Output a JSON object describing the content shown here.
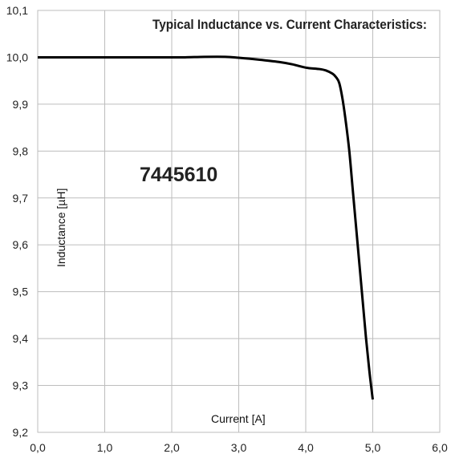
{
  "chart_data": {
    "type": "line",
    "title": "Typical Inductance vs. Current Characteristics:",
    "annotation": "7445610",
    "xlabel": "Current [A]",
    "ylabel": "Inductance [µH]",
    "xlim": [
      0,
      6
    ],
    "ylim": [
      9.2,
      10.1
    ],
    "grid": true,
    "x_ticks": [
      0,
      1,
      2,
      3,
      4,
      5,
      6
    ],
    "x_tick_labels": [
      "0,0",
      "1,0",
      "2,0",
      "3,0",
      "4,0",
      "5,0",
      "6,0"
    ],
    "y_ticks": [
      9.2,
      9.3,
      9.4,
      9.5,
      9.6,
      9.7,
      9.8,
      9.9,
      10.0,
      10.1
    ],
    "y_tick_labels": [
      "9,2",
      "9,3",
      "9,4",
      "9,5",
      "9,6",
      "9,7",
      "9,8",
      "9,9",
      "10,0",
      "10,1"
    ],
    "series": [
      {
        "color": "#000000",
        "x": [
          0,
          0.5,
          1.0,
          1.5,
          2.0,
          2.2,
          2.5,
          2.8,
          3.0,
          3.3,
          3.6,
          3.8,
          4.0,
          4.2,
          4.3,
          4.4,
          4.45,
          4.5,
          4.55,
          4.6,
          4.65,
          4.7,
          4.75,
          4.8,
          4.85,
          4.9,
          4.95,
          5.0
        ],
        "y": [
          10.0,
          10.0,
          10.0,
          10.0,
          10.0,
          10.0,
          10.001,
          10.001,
          9.999,
          9.995,
          9.99,
          9.985,
          9.978,
          9.975,
          9.972,
          9.965,
          9.958,
          9.945,
          9.91,
          9.86,
          9.8,
          9.72,
          9.64,
          9.56,
          9.48,
          9.4,
          9.33,
          9.27
        ]
      }
    ]
  }
}
